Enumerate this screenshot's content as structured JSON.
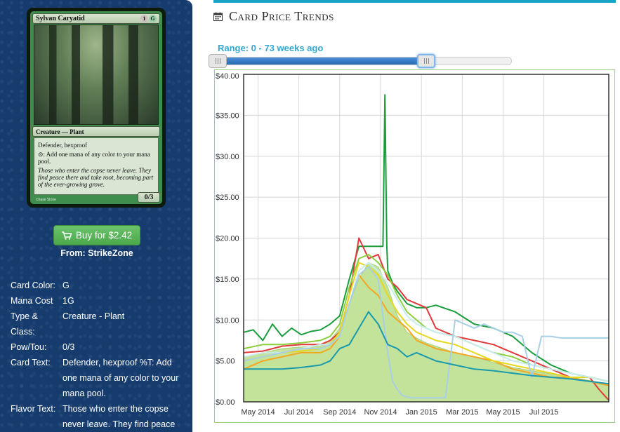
{
  "card": {
    "name": "Sylvan Caryatid",
    "mana_symbols": [
      "1",
      "G"
    ],
    "type_line": "Creature — Plant",
    "rules_text": "Defender, hexproof",
    "ability_text": "⊙: Add one mana of any color to your mana pool.",
    "flavor_text": "Those who enter the copse never leave. They find peace there and take root, becoming part of the ever-growing grove.",
    "artist": "Chase Stone",
    "power_toughness": "0/3"
  },
  "buy": {
    "label": "Buy for $2.42",
    "source": "From: StrikeZone"
  },
  "details": [
    {
      "label": "Card Color:",
      "value": "G"
    },
    {
      "label": "Mana Cost",
      "value": "1G"
    },
    {
      "label": "Type & Class:",
      "value": "Creature - Plant"
    },
    {
      "label": "Pow/Tou:",
      "value": "0/3"
    },
    {
      "label": "Card Text:",
      "value": "Defender, hexproof %T: Add one mana of any color to your mana pool."
    },
    {
      "label": "Flavor Text:",
      "value": "Those who enter the copse never leave. They find peace there and take root, becoming"
    }
  ],
  "header": {
    "title": "Card Price Trends",
    "icon": "calendar-icon"
  },
  "range": {
    "label": "Range: 0 - 73 weeks ago",
    "start_weeks": 0,
    "end_weeks": 73,
    "max_weeks": 106
  },
  "colors": {
    "accent": "#1aa5c8",
    "button": "#5cb85c",
    "sidebar": "#163c6e"
  },
  "chart_data": {
    "type": "line",
    "ylim": [
      0,
      40
    ],
    "xlim": [
      0,
      76
    ],
    "y_ticks": [
      {
        "value": 0,
        "label": "$0.00"
      },
      {
        "value": 5,
        "label": "$5.00"
      },
      {
        "value": 10,
        "label": "$10.00"
      },
      {
        "value": 15,
        "label": "$15.00"
      },
      {
        "value": 20,
        "label": "$20.00"
      },
      {
        "value": 25,
        "label": "$25.00"
      },
      {
        "value": 30,
        "label": "$30.00"
      },
      {
        "value": 35,
        "label": "$35.00"
      },
      {
        "value": 40,
        "label": "$40.00"
      }
    ],
    "x_ticks": [
      {
        "value": 3,
        "label": "May 2014"
      },
      {
        "value": 11.5,
        "label": "Jul 2014"
      },
      {
        "value": 20,
        "label": "Sep 2014"
      },
      {
        "value": 28.5,
        "label": "Nov 2014"
      },
      {
        "value": 37,
        "label": "Jan 2015"
      },
      {
        "value": 45.5,
        "label": "Mar 2015"
      },
      {
        "value": 54,
        "label": "May 2015"
      },
      {
        "value": 62.5,
        "label": "Jul 2015"
      }
    ],
    "grid": true,
    "area": {
      "color": "#c3e29a",
      "x": [
        0,
        4,
        8,
        12,
        16,
        18,
        20,
        22,
        24,
        26,
        28,
        30,
        32,
        34,
        36,
        38,
        40,
        44,
        48,
        52,
        56,
        60,
        64,
        68,
        72,
        76
      ],
      "y": [
        5.5,
        6.0,
        6.5,
        6.7,
        6.8,
        7.5,
        9.0,
        12.0,
        15.0,
        17.0,
        16.5,
        14.0,
        10.5,
        8.5,
        7.8,
        7.2,
        6.8,
        6.0,
        5.5,
        4.8,
        4.2,
        3.8,
        3.4,
        3.0,
        2.6,
        2.2
      ]
    },
    "series": [
      {
        "color": "#1a9e3c",
        "x": [
          0,
          2,
          4,
          6,
          8,
          10,
          12,
          14,
          16,
          18,
          20,
          22,
          24,
          26,
          28,
          29,
          29.4,
          29.8,
          30,
          31,
          32,
          34,
          36,
          38,
          40,
          44,
          48,
          52,
          56,
          60,
          64,
          68,
          72,
          76
        ],
        "y": [
          8.5,
          8.8,
          7.5,
          9.5,
          8.0,
          9.0,
          8.2,
          8.6,
          8.8,
          9.5,
          10.5,
          15.0,
          19.0,
          19.0,
          19.0,
          19.0,
          37.5,
          19.0,
          16.0,
          14.5,
          13.5,
          12.0,
          11.5,
          11.5,
          11.8,
          11.0,
          9.5,
          9.0,
          8.0,
          6.0,
          4.5,
          3.5,
          3.0,
          2.5
        ]
      },
      {
        "color": "#e23a3a",
        "x": [
          0,
          4,
          8,
          12,
          16,
          18,
          20,
          22,
          24,
          26,
          28,
          30,
          32,
          34,
          36,
          38,
          40,
          44,
          48,
          52,
          56,
          60,
          64,
          68,
          72,
          74,
          76
        ],
        "y": [
          6.0,
          6.2,
          6.8,
          7.0,
          7.0,
          7.5,
          8.5,
          13.0,
          20.0,
          17.5,
          18.0,
          15.0,
          14.0,
          12.5,
          12.0,
          11.5,
          9.0,
          8.0,
          7.5,
          7.0,
          6.0,
          5.0,
          4.0,
          3.0,
          3.0,
          1.5,
          0.2
        ]
      },
      {
        "color": "#f5a623",
        "x": [
          0,
          4,
          8,
          12,
          16,
          18,
          20,
          22,
          24,
          26,
          28,
          30,
          32,
          34,
          36,
          38,
          40,
          44,
          48,
          52,
          56,
          60,
          64,
          68,
          72,
          76
        ],
        "y": [
          4.0,
          5.0,
          5.5,
          6.0,
          6.0,
          6.5,
          8.0,
          12.0,
          15.5,
          14.0,
          13.0,
          11.0,
          10.0,
          9.0,
          7.5,
          7.0,
          6.5,
          6.0,
          5.5,
          5.0,
          4.0,
          3.5,
          3.0,
          3.0,
          2.5,
          2.0
        ]
      },
      {
        "color": "#e6d81f",
        "x": [
          0,
          4,
          8,
          12,
          16,
          18,
          20,
          22,
          24,
          26,
          28,
          30,
          32,
          34,
          36,
          38,
          40,
          44,
          48,
          52,
          56,
          60,
          64,
          68,
          72,
          76
        ],
        "y": [
          5.0,
          5.5,
          6.0,
          6.2,
          6.5,
          7.0,
          8.5,
          13.0,
          17.0,
          16.5,
          15.5,
          13.0,
          11.0,
          9.5,
          8.5,
          8.0,
          7.5,
          7.0,
          6.0,
          5.0,
          4.5,
          4.0,
          3.5,
          3.0,
          3.0,
          2.5
        ]
      },
      {
        "color": "#8ccf3f",
        "x": [
          0,
          4,
          8,
          12,
          16,
          18,
          20,
          22,
          24,
          26,
          28,
          30,
          32,
          34,
          36,
          38,
          40,
          44,
          48,
          52,
          56,
          60,
          64,
          68,
          72,
          76
        ],
        "y": [
          6.5,
          7.0,
          7.0,
          7.2,
          7.5,
          8.0,
          9.5,
          14.0,
          17.5,
          18.0,
          17.0,
          15.5,
          13.0,
          11.0,
          10.0,
          9.0,
          8.5,
          8.0,
          7.0,
          6.0,
          5.5,
          4.5,
          4.0,
          3.5,
          3.0,
          2.5
        ]
      },
      {
        "color": "#c8ecef",
        "x": [
          0,
          4,
          8,
          12,
          16,
          18,
          20,
          22,
          24,
          26,
          28,
          30,
          32,
          34,
          36,
          38,
          40,
          44,
          48,
          52,
          56,
          60,
          64,
          68,
          72,
          76
        ],
        "y": [
          5.5,
          6.0,
          6.0,
          6.5,
          7.0,
          7.0,
          8.0,
          12.0,
          16.0,
          17.0,
          16.0,
          14.5,
          12.5,
          10.5,
          9.5,
          9.0,
          8.5,
          8.0,
          7.0,
          6.0,
          5.0,
          4.5,
          4.0,
          3.5,
          3.0,
          2.5
        ]
      },
      {
        "color": "#a8cfe6",
        "x": [
          0,
          4,
          8,
          12,
          16,
          18,
          20,
          22,
          24,
          26,
          28,
          30,
          31,
          32,
          33,
          34,
          35,
          36,
          37,
          38,
          40,
          42,
          44,
          46,
          48,
          50,
          52,
          54,
          56,
          58,
          60,
          62,
          64,
          66,
          68,
          72,
          76
        ],
        "y": [
          5.0,
          5.5,
          6.0,
          6.5,
          6.5,
          7.0,
          8.0,
          12.0,
          15.5,
          16.5,
          15.0,
          6.0,
          2.5,
          1.5,
          0.8,
          0.6,
          0.5,
          0.5,
          0.5,
          0.5,
          0.5,
          0.5,
          10.0,
          9.5,
          9.0,
          9.5,
          9.0,
          8.5,
          8.5,
          8.0,
          3.0,
          8.0,
          8.0,
          7.8,
          7.8,
          7.8,
          7.8
        ]
      },
      {
        "color": "#1a9aac",
        "x": [
          0,
          4,
          8,
          12,
          16,
          18,
          20,
          22,
          24,
          26,
          28,
          30,
          32,
          34,
          36,
          38,
          40,
          44,
          48,
          52,
          56,
          60,
          64,
          68,
          72,
          76
        ],
        "y": [
          4.0,
          4.0,
          4.0,
          4.2,
          4.5,
          5.0,
          6.5,
          7.0,
          9.0,
          11.0,
          9.5,
          7.0,
          6.5,
          5.5,
          6.0,
          5.5,
          5.0,
          4.5,
          4.0,
          3.8,
          3.5,
          3.2,
          3.0,
          2.8,
          2.5,
          2.2
        ]
      }
    ]
  }
}
